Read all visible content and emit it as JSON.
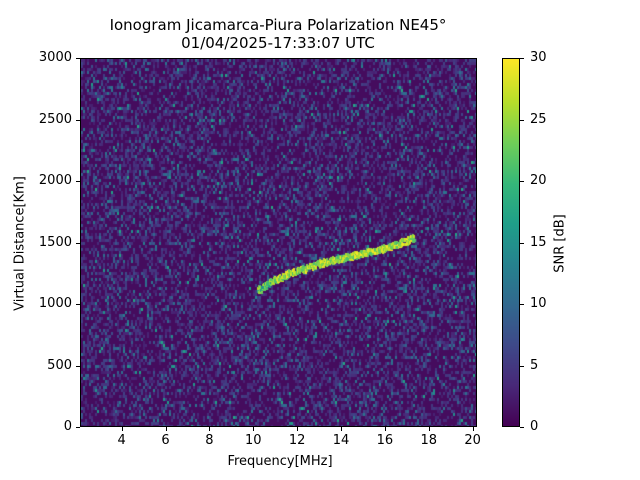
{
  "title": {
    "line1": "Ionogram Jicamarca-Piura Polarization NE45°",
    "line2": "01/04/2025-17:33:07 UTC"
  },
  "axes": {
    "xlabel": "Frequency[MHz]",
    "ylabel": "Virtual Distance[Km]",
    "xticks": [
      "4",
      "6",
      "8",
      "10",
      "12",
      "14",
      "16",
      "18",
      "20"
    ],
    "yticks": [
      "0",
      "500",
      "1000",
      "1500",
      "2000",
      "2500",
      "3000"
    ]
  },
  "colorbar": {
    "label": "SNR [dB]",
    "ticks": [
      "0",
      "5",
      "10",
      "15",
      "20",
      "25",
      "30"
    ]
  },
  "chart_data": {
    "type": "heatmap",
    "title": "Ionogram Jicamarca-Piura Polarization NE45° 01/04/2025-17:33:07 UTC",
    "xlabel": "Frequency[MHz]",
    "ylabel": "Virtual Distance[Km]",
    "xlim": [
      2.1,
      20.2
    ],
    "ylim": [
      0,
      3000
    ],
    "xticks": [
      4,
      6,
      8,
      10,
      12,
      14,
      16,
      18,
      20
    ],
    "yticks": [
      0,
      500,
      1000,
      1500,
      2000,
      2500,
      3000
    ],
    "colorbar": {
      "label": "SNR [dB]",
      "range": [
        0,
        30
      ],
      "ticks": [
        0,
        5,
        10,
        15,
        20,
        25,
        30
      ],
      "colormap": "viridis"
    },
    "trace": {
      "description": "Oblique ionospheric echo trace (high SNR, ~25-30 dB)",
      "points": [
        {
          "freq": 10.2,
          "dist": 1130
        },
        {
          "freq": 10.8,
          "dist": 1200
        },
        {
          "freq": 11.5,
          "dist": 1260
        },
        {
          "freq": 12.5,
          "dist": 1320
        },
        {
          "freq": 13.5,
          "dist": 1370
        },
        {
          "freq": 14.5,
          "dist": 1410
        },
        {
          "freq": 15.5,
          "dist": 1450
        },
        {
          "freq": 16.5,
          "dist": 1500
        },
        {
          "freq": 17.3,
          "dist": 1560
        }
      ]
    },
    "background": "noise ~0-10 dB"
  }
}
